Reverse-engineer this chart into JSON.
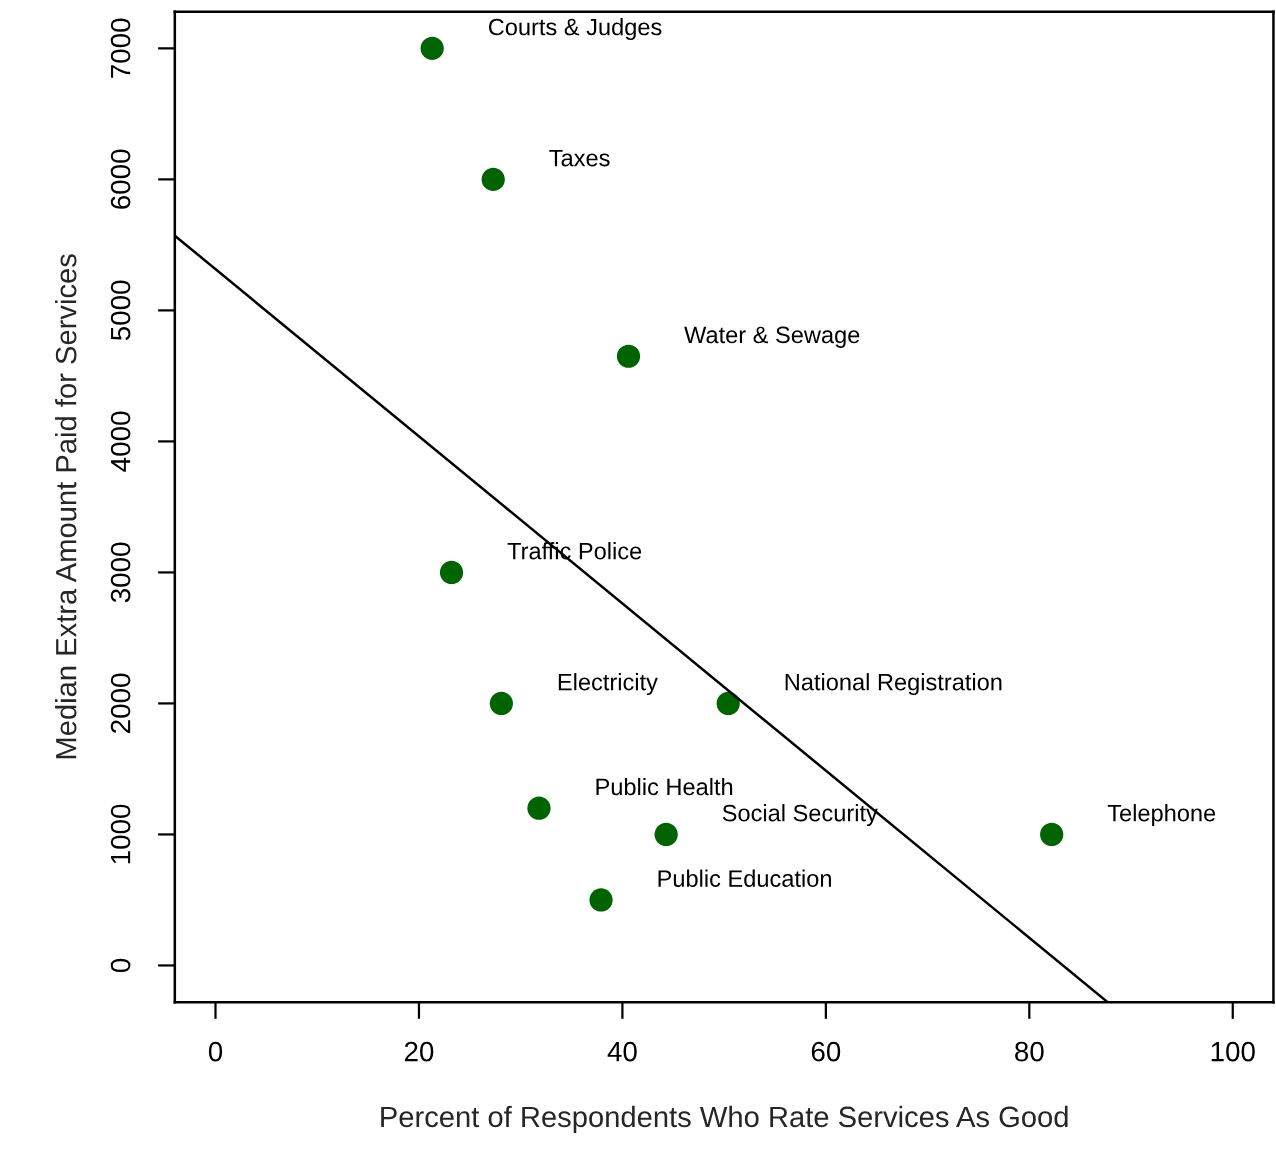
{
  "chart_data": {
    "type": "scatter",
    "xlabel": "Percent of Respondents Who Rate Services As Good",
    "ylabel": "Median Extra Amount Paid for Services",
    "series": [
      {
        "marker": "circle",
        "color": "#006400",
        "x": [
          21.3,
          27.3,
          40.6,
          23.2,
          28.1,
          50.4,
          31.8,
          44.3,
          37.9,
          82.2
        ],
        "values": [
          7000,
          6000,
          4650,
          3000,
          2000,
          2000,
          1200,
          1000,
          500,
          1000
        ]
      },
      {
        "type": "line",
        "color": "#000000",
        "x": [
          -4,
          87.7
        ],
        "values": [
          5570,
          -280
        ]
      }
    ],
    "annotations": [
      {
        "text": "Courts & Judges",
        "x": 21.3,
        "y": 7000
      },
      {
        "text": "Taxes",
        "x": 27.3,
        "y": 6000
      },
      {
        "text": "Water & Sewage",
        "x": 40.6,
        "y": 4650
      },
      {
        "text": "Traffic Police",
        "x": 23.2,
        "y": 3000
      },
      {
        "text": "Electricity",
        "x": 28.1,
        "y": 2000
      },
      {
        "text": "National Registration",
        "x": 50.4,
        "y": 2000
      },
      {
        "text": "Public Health",
        "x": 31.8,
        "y": 1200
      },
      {
        "text": "Social Security",
        "x": 44.3,
        "y": 1000
      },
      {
        "text": "Public Education",
        "x": 37.9,
        "y": 500
      },
      {
        "text": "Telephone",
        "x": 82.2,
        "y": 1000
      }
    ],
    "xlim": [
      -4,
      104
    ],
    "ylim": [
      -280,
      7280
    ],
    "xticks": [
      0,
      20,
      40,
      60,
      80,
      100
    ],
    "yticks": [
      0,
      1000,
      2000,
      3000,
      4000,
      5000,
      6000,
      7000
    ],
    "grid": false,
    "legend": false
  }
}
